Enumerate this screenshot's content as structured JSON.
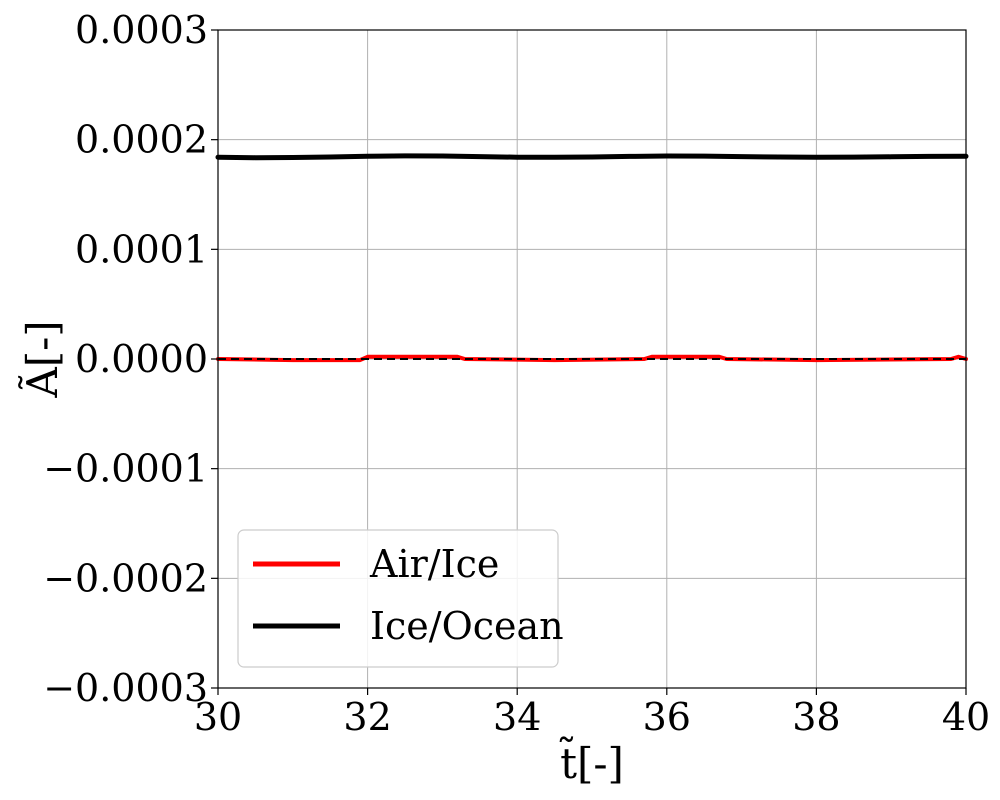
{
  "chart_data": {
    "type": "line",
    "xlabel": "t̃[-]",
    "ylabel": "Ã[-]",
    "xlim": [
      30,
      40
    ],
    "ylim": [
      -0.0003,
      0.0003
    ],
    "x_ticks": [
      30,
      32,
      34,
      36,
      38,
      40
    ],
    "x_tick_labels": [
      "30",
      "32",
      "34",
      "36",
      "38",
      "40"
    ],
    "y_ticks": [
      -0.0003,
      -0.0002,
      -0.0001,
      0.0,
      0.0001,
      0.0002,
      0.0003
    ],
    "y_tick_labels": [
      "−0.0003",
      "−0.0002",
      "−0.0001",
      "0.0000",
      "0.0001",
      "0.0002",
      "0.0003"
    ],
    "grid": true,
    "legend_position": "lower-left",
    "series": [
      {
        "name": "Air/Ice",
        "color": "#ff0000",
        "x": [
          30,
          31,
          31.9,
          32,
          33.2,
          33.3,
          34.5,
          35.7,
          35.8,
          36.7,
          36.8,
          38,
          39.8,
          39.9,
          40
        ],
        "y": [
          0.0,
          -1e-06,
          -1e-06,
          2e-06,
          2e-06,
          0.0,
          -1e-06,
          0.0,
          2e-06,
          2e-06,
          0.0,
          -1e-06,
          0.0,
          2e-06,
          0.0
        ]
      },
      {
        "name": "Ice/Ocean",
        "color": "#000000",
        "x": [
          30,
          30.5,
          31,
          31.5,
          32,
          32.5,
          33,
          33.5,
          34,
          34.5,
          35,
          35.5,
          36,
          36.5,
          37,
          37.5,
          38,
          38.5,
          39,
          39.5,
          40
        ],
        "y": [
          0.000184,
          0.0001836,
          0.0001837,
          0.0001842,
          0.0001848,
          0.0001852,
          0.0001851,
          0.0001846,
          0.000184,
          0.0001839,
          0.0001842,
          0.0001847,
          0.0001851,
          0.000185,
          0.0001846,
          0.0001842,
          0.000184,
          0.0001841,
          0.0001844,
          0.0001847,
          0.0001848
        ]
      }
    ],
    "reference_line": {
      "style": "dashed",
      "color": "#000000",
      "y": 0.0
    }
  }
}
